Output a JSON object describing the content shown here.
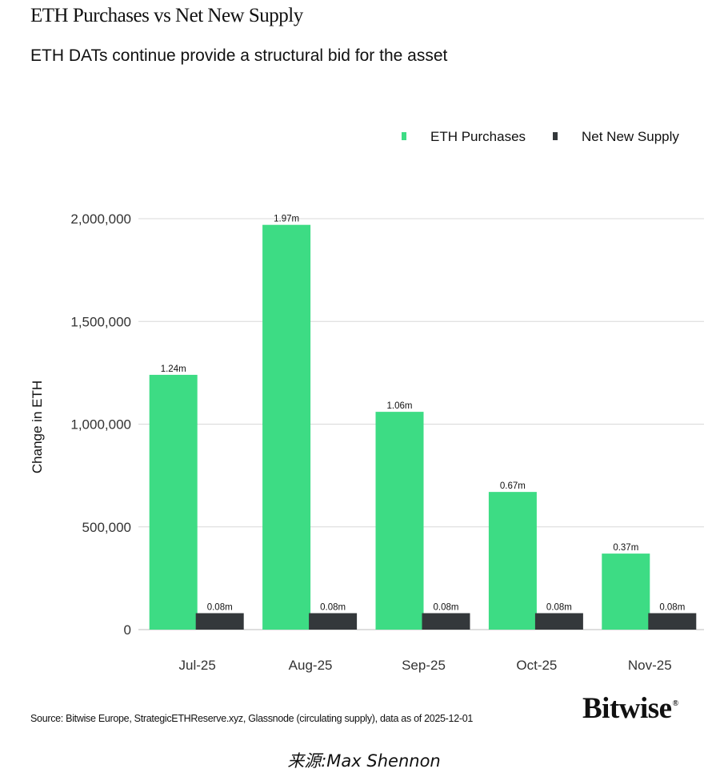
{
  "header": {
    "title": "ETH Purchases vs Net New Supply",
    "subtitle": "ETH DATs continue provide a structural bid for the asset"
  },
  "chart_data": {
    "type": "bar",
    "title": "ETH Purchases vs Net New Supply",
    "subtitle": "ETH DATs continue provide a structural bid for the asset",
    "xlabel": "",
    "ylabel": "Change in ETH",
    "ylim": [
      0,
      2000000
    ],
    "yticks": [
      0,
      500000,
      1000000,
      1500000,
      2000000
    ],
    "ytick_labels": [
      "0",
      "500,000",
      "1,000,000",
      "1,500,000",
      "2,000,000"
    ],
    "grid": true,
    "legend_position": "top-right",
    "categories": [
      "Jul-25",
      "Aug-25",
      "Sep-25",
      "Oct-25",
      "Nov-25"
    ],
    "series": [
      {
        "name": "ETH Purchases",
        "color": "#3ddc84",
        "values": [
          1240000,
          1970000,
          1060000,
          670000,
          370000
        ],
        "labels": [
          "1.24m",
          "1.97m",
          "1.06m",
          "0.67m",
          "0.37m"
        ]
      },
      {
        "name": "Net New Supply",
        "color": "#34383b",
        "values": [
          80000,
          80000,
          80000,
          80000,
          80000
        ],
        "labels": [
          "0.08m",
          "0.08m",
          "0.08m",
          "0.08m",
          "0.08m"
        ]
      }
    ]
  },
  "footer": {
    "source": "Source: Bitwise Europe, StrategicETHReserve.xyz, Glassnode (circulating supply), data as of 2025-12-01",
    "logo": "Bitwise",
    "logo_mark": "®",
    "credit": "来源:Max Shennon"
  },
  "colors": {
    "grid": "#d9d9d9",
    "axis_text": "#333333"
  }
}
